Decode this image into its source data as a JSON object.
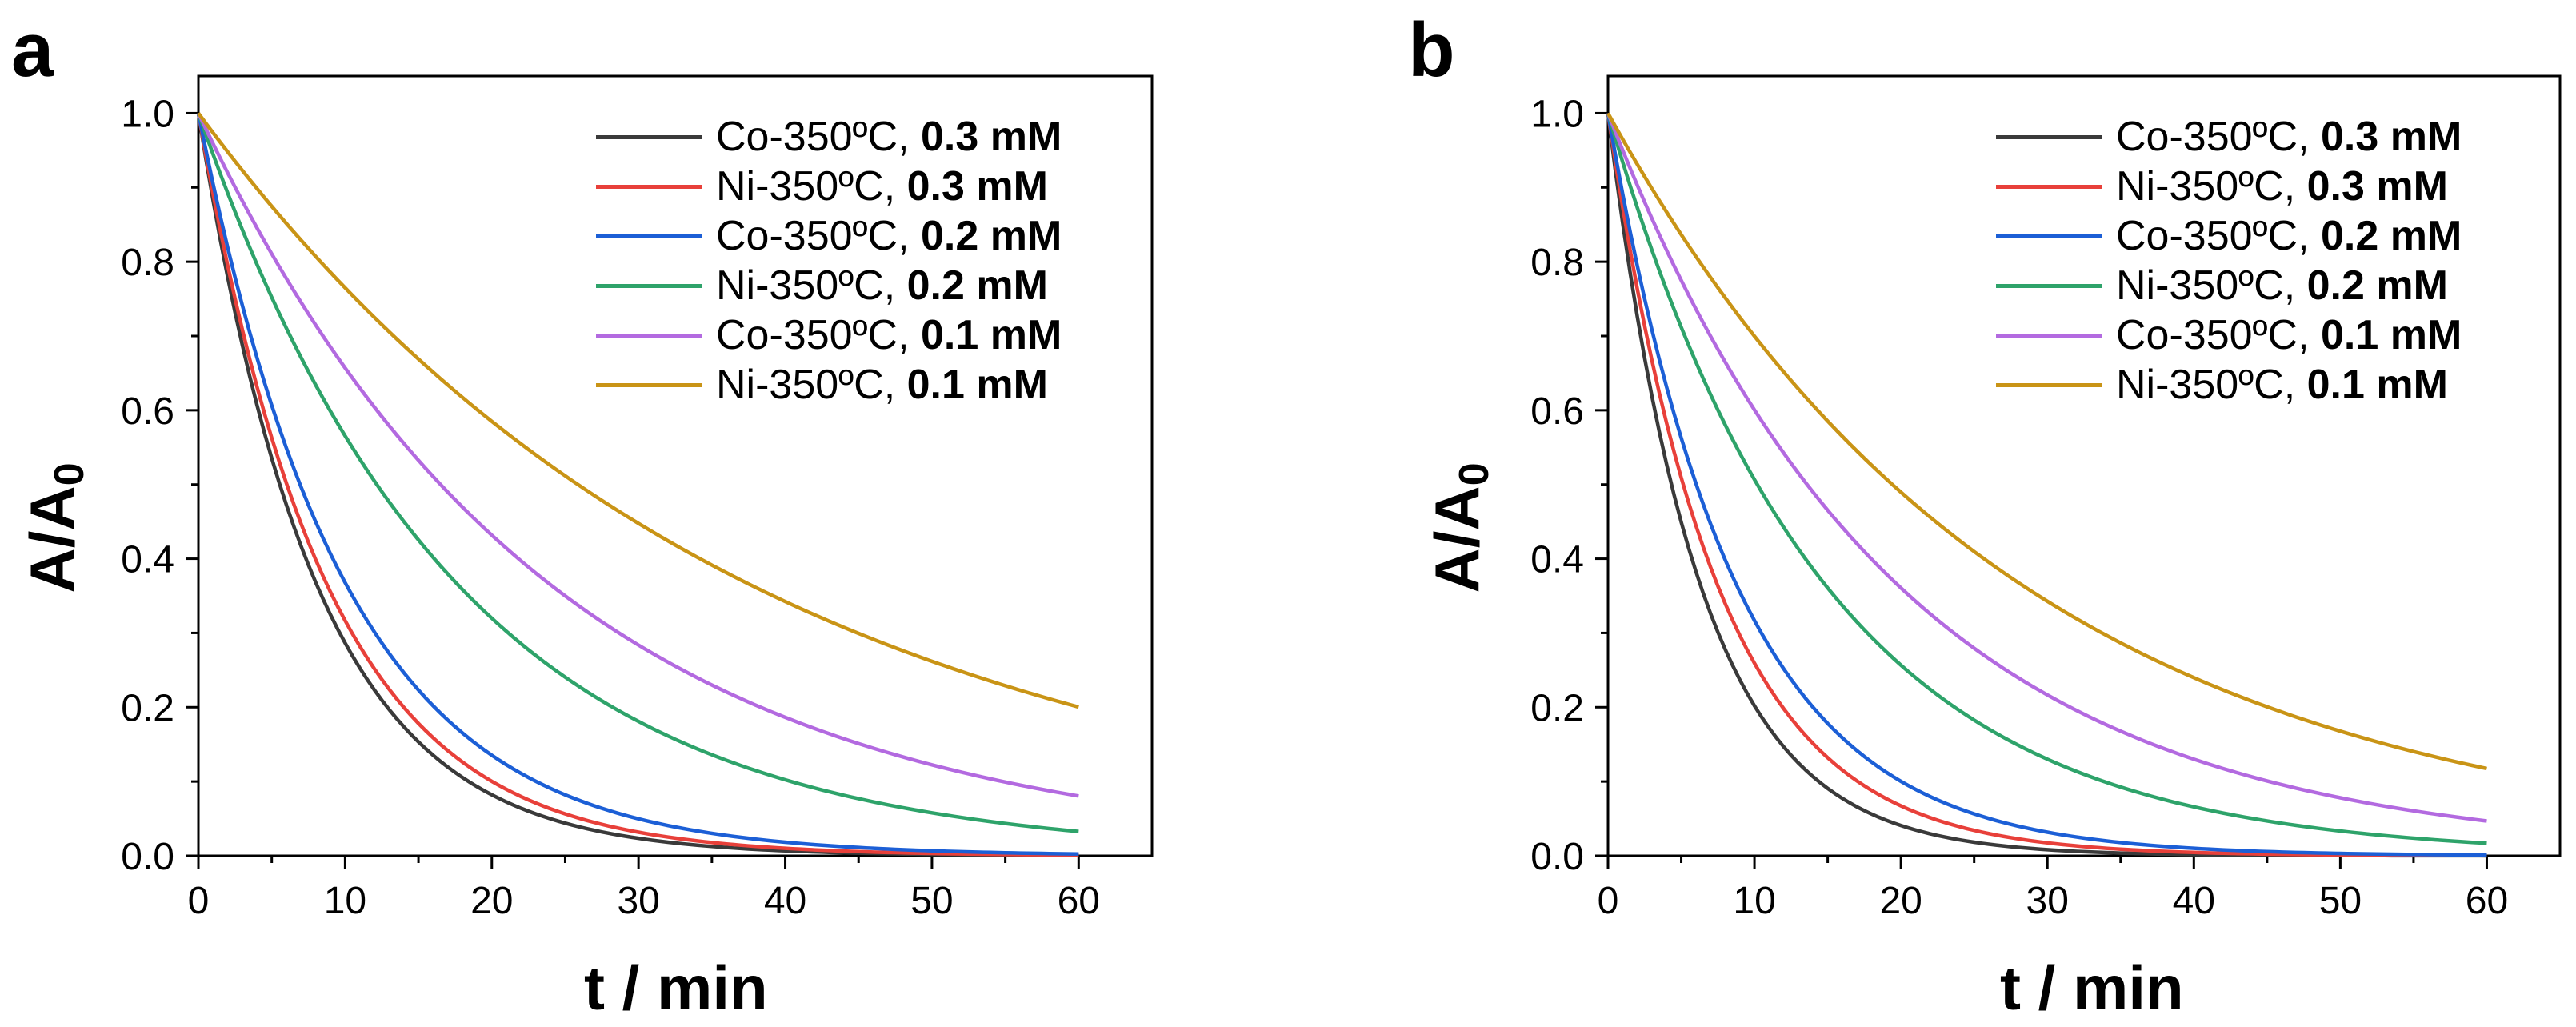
{
  "chart_data": [
    {
      "type": "line",
      "panel_label": "a",
      "xlabel": "t / min",
      "ylabel_main": "A/A",
      "ylabel_sub": "0",
      "xlim": [
        0,
        65
      ],
      "ylim": [
        0,
        1.05
      ],
      "xticks": [
        "0",
        "10",
        "20",
        "30",
        "40",
        "50",
        "60"
      ],
      "yticks": [
        "0.0",
        "0.2",
        "0.4",
        "0.6",
        "0.8",
        "1.0"
      ],
      "legend_position": "top-right",
      "x": [
        0,
        2,
        4,
        6,
        8,
        10,
        12,
        14,
        16,
        18,
        20,
        22,
        24,
        26,
        28,
        30,
        32,
        34,
        36,
        38,
        40,
        42,
        44,
        46,
        48,
        50,
        52,
        54,
        56,
        58,
        60
      ],
      "series": [
        {
          "name": "Co-350ºC, ",
          "conc": "0.3 mM",
          "color": "#3a3a3a",
          "k": 0.125
        },
        {
          "name": "Ni-350ºC, ",
          "conc": "0.3 mM",
          "color": "#e8403a",
          "k": 0.115
        },
        {
          "name": "Co-350ºC, ",
          "conc": "0.2 mM",
          "color": "#1c5fd6",
          "k": 0.1
        },
        {
          "name": "Ni-350ºC, ",
          "conc": "0.2 mM",
          "color": "#2ea36a",
          "k": 0.057
        },
        {
          "name": "Co-350ºC, ",
          "conc": "0.1 mM",
          "color": "#b36ae0",
          "k": 0.042
        },
        {
          "name": "Ni-350ºC, ",
          "conc": "0.1 mM",
          "color": "#c99416",
          "k": 0.0268
        }
      ]
    },
    {
      "type": "line",
      "panel_label": "b",
      "xlabel": "t / min",
      "ylabel_main": "A/A",
      "ylabel_sub": "0",
      "xlim": [
        0,
        65
      ],
      "ylim": [
        0,
        1.05
      ],
      "xticks": [
        "0",
        "10",
        "20",
        "30",
        "40",
        "50",
        "60"
      ],
      "yticks": [
        "0.0",
        "0.2",
        "0.4",
        "0.6",
        "0.8",
        "1.0"
      ],
      "legend_position": "top-right",
      "x": [
        0,
        2,
        4,
        6,
        8,
        10,
        12,
        14,
        16,
        18,
        20,
        22,
        24,
        26,
        28,
        30,
        32,
        34,
        36,
        38,
        40,
        42,
        44,
        46,
        48,
        50,
        52,
        54,
        56,
        58,
        60
      ],
      "series": [
        {
          "name": "Co-350ºC, ",
          "conc": "0.3 mM",
          "color": "#3a3a3a",
          "k": 0.16
        },
        {
          "name": "Ni-350ºC, ",
          "conc": "0.3 mM",
          "color": "#e8403a",
          "k": 0.135
        },
        {
          "name": "Co-350ºC, ",
          "conc": "0.2 mM",
          "color": "#1c5fd6",
          "k": 0.115
        },
        {
          "name": "Ni-350ºC, ",
          "conc": "0.2 mM",
          "color": "#2ea36a",
          "k": 0.068
        },
        {
          "name": "Co-350ºC, ",
          "conc": "0.1 mM",
          "color": "#b36ae0",
          "k": 0.051
        },
        {
          "name": "Ni-350ºC, ",
          "conc": "0.1 mM",
          "color": "#c99416",
          "k": 0.0357
        }
      ]
    }
  ]
}
